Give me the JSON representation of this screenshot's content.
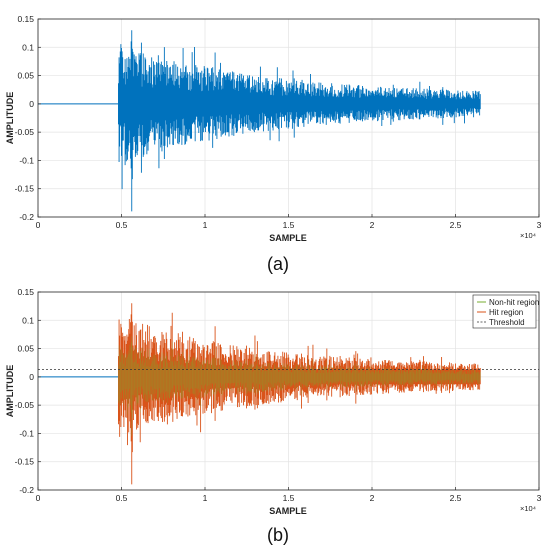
{
  "chart_data": [
    {
      "type": "line",
      "caption": "(a)",
      "xlabel": "SAMPLE",
      "ylabel": "AMPLITUDE",
      "x_multiplier": "×10⁴",
      "xlim": [
        0,
        30000
      ],
      "ylim": [
        -0.2,
        0.15
      ],
      "x_ticks": [
        0,
        5000,
        10000,
        15000,
        20000,
        25000,
        30000
      ],
      "x_tick_labels": [
        "0",
        "0.5",
        "1",
        "1.5",
        "2",
        "2.5",
        "3"
      ],
      "y_ticks": [
        -0.2,
        -0.15,
        -0.1,
        -0.05,
        0,
        0.05,
        0.1,
        0.15
      ],
      "y_tick_labels": [
        "-0.2",
        "-0.15",
        "-0.1",
        "-0.05",
        "0",
        "0.05",
        "0.1",
        "0.15"
      ],
      "grid": true,
      "series": [
        {
          "color": "#0072BD",
          "signal": {
            "length": 26500,
            "onset": 4800,
            "peak_at": 5600,
            "peak_min": -0.19,
            "peak_max": 0.13,
            "envelope_at_onset": 0.1,
            "envelope_at_end": 0.015
          }
        }
      ]
    },
    {
      "type": "line",
      "caption": "(b)",
      "xlabel": "SAMPLE",
      "ylabel": "AMPLITUDE",
      "x_multiplier": "×10⁴",
      "xlim": [
        0,
        30000
      ],
      "ylim": [
        -0.2,
        0.15
      ],
      "x_ticks": [
        0,
        5000,
        10000,
        15000,
        20000,
        25000,
        30000
      ],
      "x_tick_labels": [
        "0",
        "0.5",
        "1",
        "1.5",
        "2",
        "2.5",
        "3"
      ],
      "y_ticks": [
        -0.2,
        -0.15,
        -0.1,
        -0.05,
        0,
        0.05,
        0.1,
        0.15
      ],
      "y_tick_labels": [
        "-0.2",
        "-0.15",
        "-0.1",
        "-0.05",
        "0",
        "0.05",
        "0.1",
        "0.15"
      ],
      "grid": true,
      "legend_position": "top-right",
      "threshold": 0.013,
      "series": [
        {
          "name": "Non-hit region",
          "color": "#77AC30",
          "style": "solid"
        },
        {
          "name": "Hit region",
          "color": "#D95319",
          "style": "solid"
        },
        {
          "name": "Threshold",
          "color": "#333333",
          "style": "dashed"
        }
      ],
      "signal": {
        "length": 26500,
        "onset": 4800,
        "peak_at": 5600,
        "peak_min": -0.19,
        "peak_max": 0.13,
        "envelope_at_onset": 0.1,
        "envelope_at_end": 0.015
      }
    }
  ]
}
